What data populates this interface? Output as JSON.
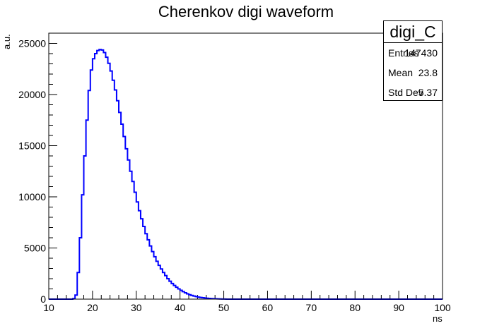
{
  "page": {
    "title": "Cherenkov digi waveform"
  },
  "stats": {
    "name": "digi_C",
    "entries_label": "Entries",
    "entries_value": "147430",
    "mean_label": "Mean",
    "mean_value": "23.8",
    "stddev_label": "Std Dev",
    "stddev_value": "5.37"
  },
  "chart_data": {
    "type": "histogram",
    "title": "Cherenkov digi waveform",
    "xlabel": "ns",
    "ylabel": "a.u.",
    "xlim": [
      10,
      100
    ],
    "ylim": [
      0,
      26000
    ],
    "x_ticks": [
      10,
      20,
      30,
      40,
      50,
      60,
      70,
      80,
      90,
      100
    ],
    "y_ticks": [
      0,
      5000,
      10000,
      15000,
      20000,
      25000
    ],
    "bin_width": 0.5,
    "bin_start": 15,
    "series": [
      {
        "color": "#0000ff",
        "values": [
          0,
          50,
          400,
          2600,
          6000,
          10200,
          14000,
          17500,
          20400,
          22400,
          23500,
          24000,
          24300,
          24400,
          24350,
          24100,
          23650,
          23050,
          22300,
          21400,
          20450,
          19400,
          18250,
          17100,
          15900,
          14700,
          13600,
          12500,
          11500,
          10450,
          9500,
          8650,
          7850,
          7100,
          6400,
          5800,
          5200,
          4650,
          4150,
          3700,
          3300,
          2950,
          2600,
          2300,
          2000,
          1750,
          1530,
          1340,
          1160,
          1000,
          860,
          730,
          620,
          520,
          430,
          360,
          300,
          250,
          200,
          165,
          135,
          110,
          90,
          70,
          55,
          45,
          35,
          25,
          18,
          12,
          8,
          4,
          0
        ]
      }
    ],
    "grid": false
  }
}
